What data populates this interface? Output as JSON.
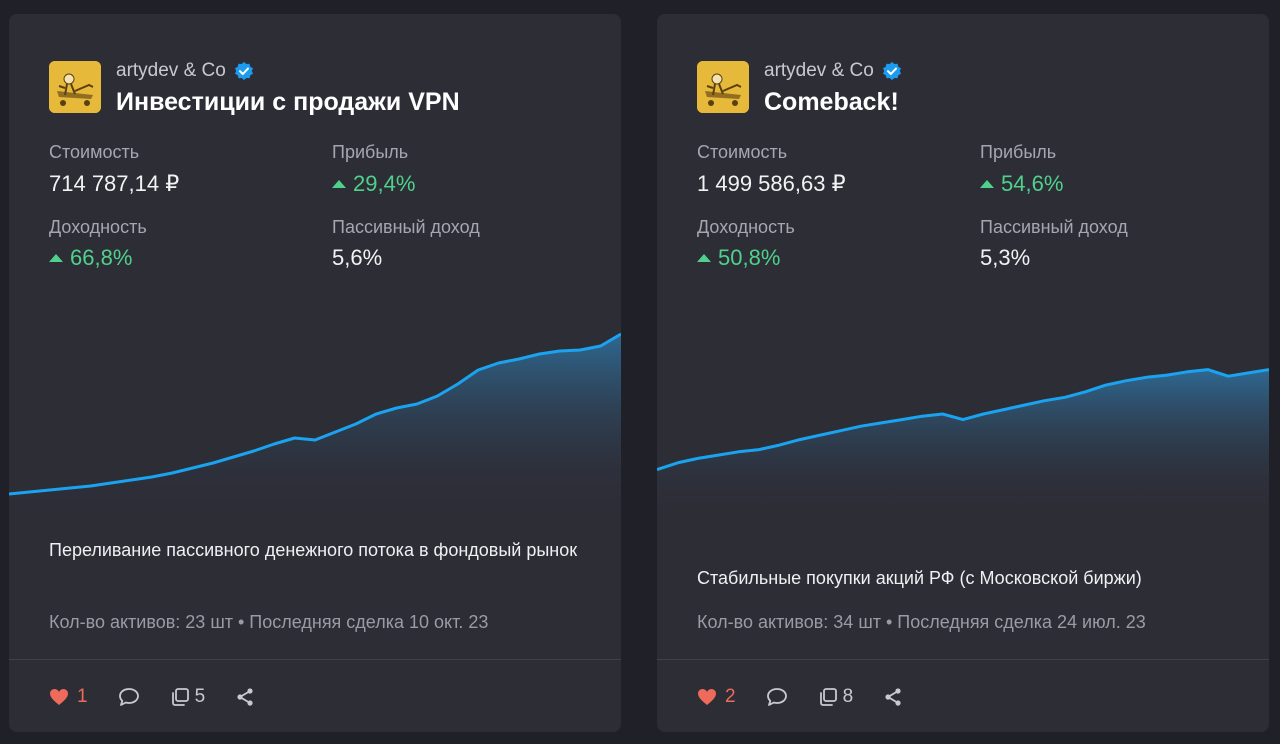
{
  "colors": {
    "page_bg": "#202028",
    "card_bg": "#2d2d36",
    "positive": "#4fd18b",
    "chart_line": "#1aa3f0",
    "like": "#ee6a5a",
    "verified": "#1d9bf0"
  },
  "cards": [
    {
      "author": "artydev & Co",
      "title": "Инвестиции с продажи VPN",
      "stats": {
        "cost_label": "Стоимость",
        "cost_value": "714 787,14 ₽",
        "profit_label": "Прибыль",
        "profit_value": "29,4%",
        "yield_label": "Доходность",
        "yield_value": "66,8%",
        "passive_label": "Пассивный доход",
        "passive_value": "5,6%"
      },
      "description": "Переливание пассивного денежного потока в фондовый рынок",
      "meta": "Кол-во активов: 23 шт • Последняя сделка 10 окт. 23",
      "likes": "1",
      "copies": "5",
      "icons": [
        "avatar-cartoon",
        "verified-icon",
        "heart-icon",
        "comment-icon",
        "copy-icon",
        "share-icon"
      ]
    },
    {
      "author": "artydev & Co",
      "title": "Comeback!",
      "stats": {
        "cost_label": "Стоимость",
        "cost_value": "1 499 586,63 ₽",
        "profit_label": "Прибыль",
        "profit_value": "54,6%",
        "yield_label": "Доходность",
        "yield_value": "50,8%",
        "passive_label": "Пассивный доход",
        "passive_value": "5,3%"
      },
      "description": "Стабильные покупки акций РФ (с Московской биржи)",
      "meta": "Кол-во активов: 34 шт • Последняя сделка 24 июл. 23",
      "likes": "2",
      "copies": "8",
      "icons": [
        "avatar-cartoon",
        "verified-icon",
        "heart-icon",
        "comment-icon",
        "copy-icon",
        "share-icon"
      ]
    }
  ],
  "chart_data": [
    {
      "type": "area",
      "title": "",
      "xlabel": "",
      "ylabel": "",
      "grid": false,
      "x": [
        0,
        1,
        2,
        3,
        4,
        5,
        6,
        7,
        8,
        9,
        10,
        11,
        12,
        13,
        14,
        15,
        16,
        17,
        18,
        19,
        20,
        21,
        22,
        23,
        24,
        25,
        26,
        27,
        28,
        29,
        30
      ],
      "values": [
        100,
        102,
        104,
        106,
        108,
        111,
        114,
        117,
        121,
        126,
        131,
        137,
        143,
        150,
        156,
        154,
        162,
        170,
        180,
        186,
        190,
        198,
        210,
        224,
        231,
        235,
        240,
        243,
        244,
        248,
        260
      ],
      "ylim": [
        80,
        280
      ]
    },
    {
      "type": "area",
      "title": "",
      "xlabel": "",
      "ylabel": "",
      "grid": false,
      "x": [
        0,
        1,
        2,
        3,
        4,
        5,
        6,
        7,
        8,
        9,
        10,
        11,
        12,
        13,
        14,
        15,
        16,
        17,
        18,
        19,
        20,
        21,
        22,
        23,
        24,
        25,
        26,
        27,
        28,
        29,
        30
      ],
      "values": [
        100,
        106,
        110,
        113,
        116,
        118,
        122,
        127,
        131,
        135,
        139,
        142,
        145,
        148,
        150,
        145,
        150,
        154,
        158,
        162,
        165,
        170,
        176,
        180,
        183,
        185,
        188,
        190,
        184,
        187,
        190
      ],
      "ylim": [
        60,
        240
      ]
    }
  ]
}
